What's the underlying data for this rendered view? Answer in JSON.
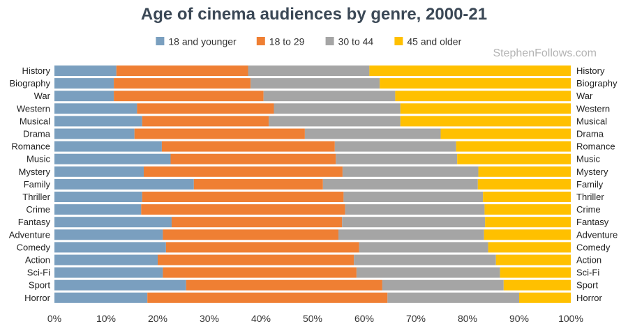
{
  "chart_data": {
    "type": "bar",
    "orientation": "horizontal",
    "stacked": "percent",
    "title": "Age of cinema audiences by genre, 2000-21",
    "watermark": "StephenFollows.com",
    "legend_position": "top",
    "categories": [
      "History",
      "Biography",
      "War",
      "Western",
      "Musical",
      "Drama",
      "Romance",
      "Music",
      "Mystery",
      "Family",
      "Thriller",
      "Crime",
      "Fantasy",
      "Adventure",
      "Comedy",
      "Action",
      "Sci-Fi",
      "Sport",
      "Horror"
    ],
    "series": [
      {
        "name": "18 and younger",
        "color": "#7a9fbf",
        "values": [
          12.0,
          11.5,
          11.5,
          16.0,
          17.0,
          15.5,
          20.8,
          22.5,
          17.3,
          27.0,
          17.0,
          16.8,
          22.7,
          21.0,
          21.6,
          20.0,
          21.0,
          25.5,
          18.0
        ]
      },
      {
        "name": "18 to 29",
        "color": "#ef7f33",
        "values": [
          25.5,
          26.5,
          29.0,
          26.5,
          24.5,
          33.0,
          33.5,
          32.0,
          38.5,
          25.0,
          39.0,
          39.5,
          33.0,
          34.0,
          37.4,
          38.0,
          37.5,
          38.0,
          46.5
        ]
      },
      {
        "name": "30 to 44",
        "color": "#a5a5a5",
        "values": [
          23.5,
          25.0,
          25.5,
          24.5,
          25.5,
          26.3,
          23.5,
          23.5,
          26.3,
          30.0,
          27.0,
          27.0,
          27.7,
          28.2,
          25.0,
          27.5,
          27.8,
          23.5,
          25.5
        ]
      },
      {
        "name": "45 and older",
        "color": "#ffc000",
        "values": [
          39.0,
          37.0,
          34.0,
          33.0,
          33.0,
          25.2,
          22.2,
          22.0,
          17.9,
          18.0,
          17.0,
          16.7,
          16.6,
          16.8,
          16.0,
          14.5,
          13.7,
          13.0,
          10.0
        ]
      }
    ],
    "xlim": [
      0,
      100
    ],
    "x_ticks": [
      "0%",
      "10%",
      "20%",
      "30%",
      "40%",
      "50%",
      "60%",
      "70%",
      "80%",
      "90%",
      "100%"
    ],
    "category_labels_both_sides": true,
    "grid": false
  }
}
